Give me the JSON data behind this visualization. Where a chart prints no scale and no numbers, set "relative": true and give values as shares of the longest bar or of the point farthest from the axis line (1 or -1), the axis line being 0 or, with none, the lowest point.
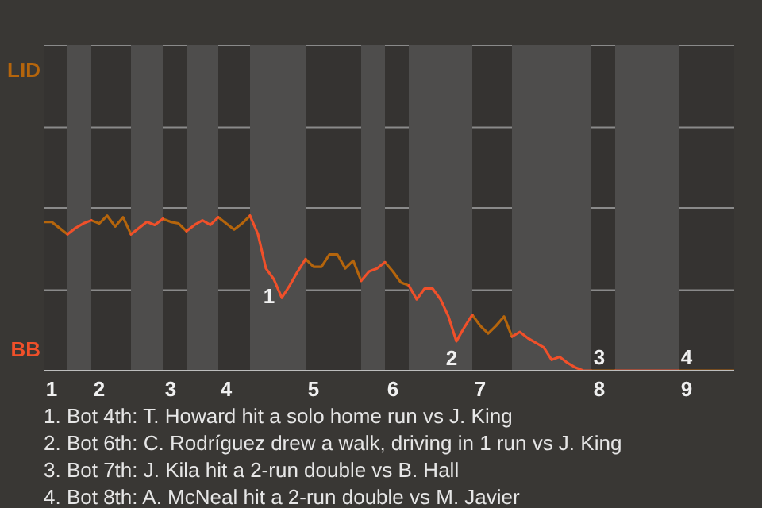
{
  "chart_data": {
    "type": "line",
    "relative": true,
    "categories": [
      null,
      "1",
      null,
      null,
      null,
      null,
      null,
      "2",
      null,
      null,
      null,
      null,
      null,
      null,
      null,
      null,
      "3",
      null,
      null,
      null,
      null,
      null,
      null,
      "4",
      null,
      null,
      null,
      null,
      null,
      null,
      null,
      null,
      null,
      null,
      "5",
      null,
      null,
      null,
      null,
      null,
      null,
      null,
      null,
      null,
      "6",
      null,
      null,
      null,
      null,
      null,
      null,
      null,
      null,
      null,
      null,
      "7",
      null,
      null,
      null,
      null,
      null,
      null,
      null,
      null,
      null,
      null,
      null,
      null,
      null,
      null,
      "8",
      null,
      null,
      null,
      null,
      null,
      null,
      null,
      null,
      null,
      null,
      "9",
      null,
      null,
      null,
      null,
      null,
      null
    ],
    "marker": "none",
    "line_style": "solid",
    "ref_lines": [
      {
        "axis": "y",
        "value": 0.52,
        "color": "#8a8a8a"
      },
      {
        "axis": "y",
        "value": 1.05,
        "color": "#8a8a8a"
      },
      {
        "axis": "y",
        "value": 1.57,
        "color": "#8a8a8a"
      },
      {
        "axis": "y",
        "value": 2.1,
        "color": "#8a8a8a"
      }
    ],
    "series": [
      {
        "color": "#b5650c",
        "values": [
          0.96,
          0.96,
          0.92,
          0.88,
          null,
          null,
          0.97,
          0.95,
          1,
          0.93,
          0.99,
          0.88,
          null,
          null,
          null,
          0.98,
          0.96,
          0.95,
          0.9,
          null,
          null,
          null,
          0.99,
          0.95,
          0.91,
          0.95,
          1,
          null,
          null,
          null,
          null,
          null,
          null,
          0.72,
          0.67,
          0.67,
          0.75,
          0.75,
          0.66,
          0.71,
          0.58,
          null,
          null,
          0.7,
          0.64,
          0.57,
          0.55,
          null,
          null,
          null,
          null,
          null,
          null,
          null,
          0.36,
          0.29,
          0.24,
          0.29,
          0.35,
          0.22,
          null,
          null,
          null,
          null,
          null,
          null,
          null,
          null,
          null,
          0,
          0,
          0,
          0,
          null,
          null,
          null,
          null,
          null,
          null,
          null,
          0,
          0,
          0,
          0,
          0,
          0,
          0,
          0
        ]
      },
      {
        "color": "#f0502a",
        "values": [
          null,
          null,
          null,
          0.88,
          0.92,
          0.95,
          0.97,
          null,
          null,
          null,
          null,
          0.88,
          0.92,
          0.96,
          0.94,
          0.98,
          null,
          null,
          0.9,
          0.94,
          0.97,
          0.94,
          0.99,
          null,
          null,
          null,
          1,
          0.88,
          0.66,
          0.59,
          0.47,
          0.55,
          0.64,
          0.72,
          null,
          null,
          null,
          null,
          null,
          null,
          0.58,
          0.64,
          0.66,
          0.7,
          null,
          null,
          0.55,
          0.46,
          0.53,
          0.53,
          0.46,
          0.35,
          0.19,
          0.28,
          0.36,
          null,
          null,
          null,
          null,
          0.22,
          0.25,
          0.21,
          0.18,
          0.15,
          0.07,
          0.09,
          0.05,
          0.02,
          0,
          0,
          null,
          null,
          0,
          0,
          0,
          0,
          0,
          0,
          0,
          0,
          0,
          null,
          null,
          null,
          null,
          null,
          null,
          null
        ]
      }
    ],
    "annotations": [
      "LID",
      "BB",
      "1. Bot 4th: T. Howard hit a solo home run vs J. King",
      "2. Bot 6th: C. Rodríguez drew a walk, driving in 1 run vs J. King",
      "3. Bot 7th: J. Kila hit a 2-run double vs B. Hall",
      "4. Bot 8th: A. McNeal hit a 2-run double vs M. Javier",
      {
        "text": "1",
        "y": 0.59
      },
      {
        "text": "2",
        "y": 0.19
      },
      {
        "text": "3",
        "x": "8",
        "y": 0
      },
      {
        "text": "4",
        "x": "9",
        "y": 0
      }
    ]
  }
}
